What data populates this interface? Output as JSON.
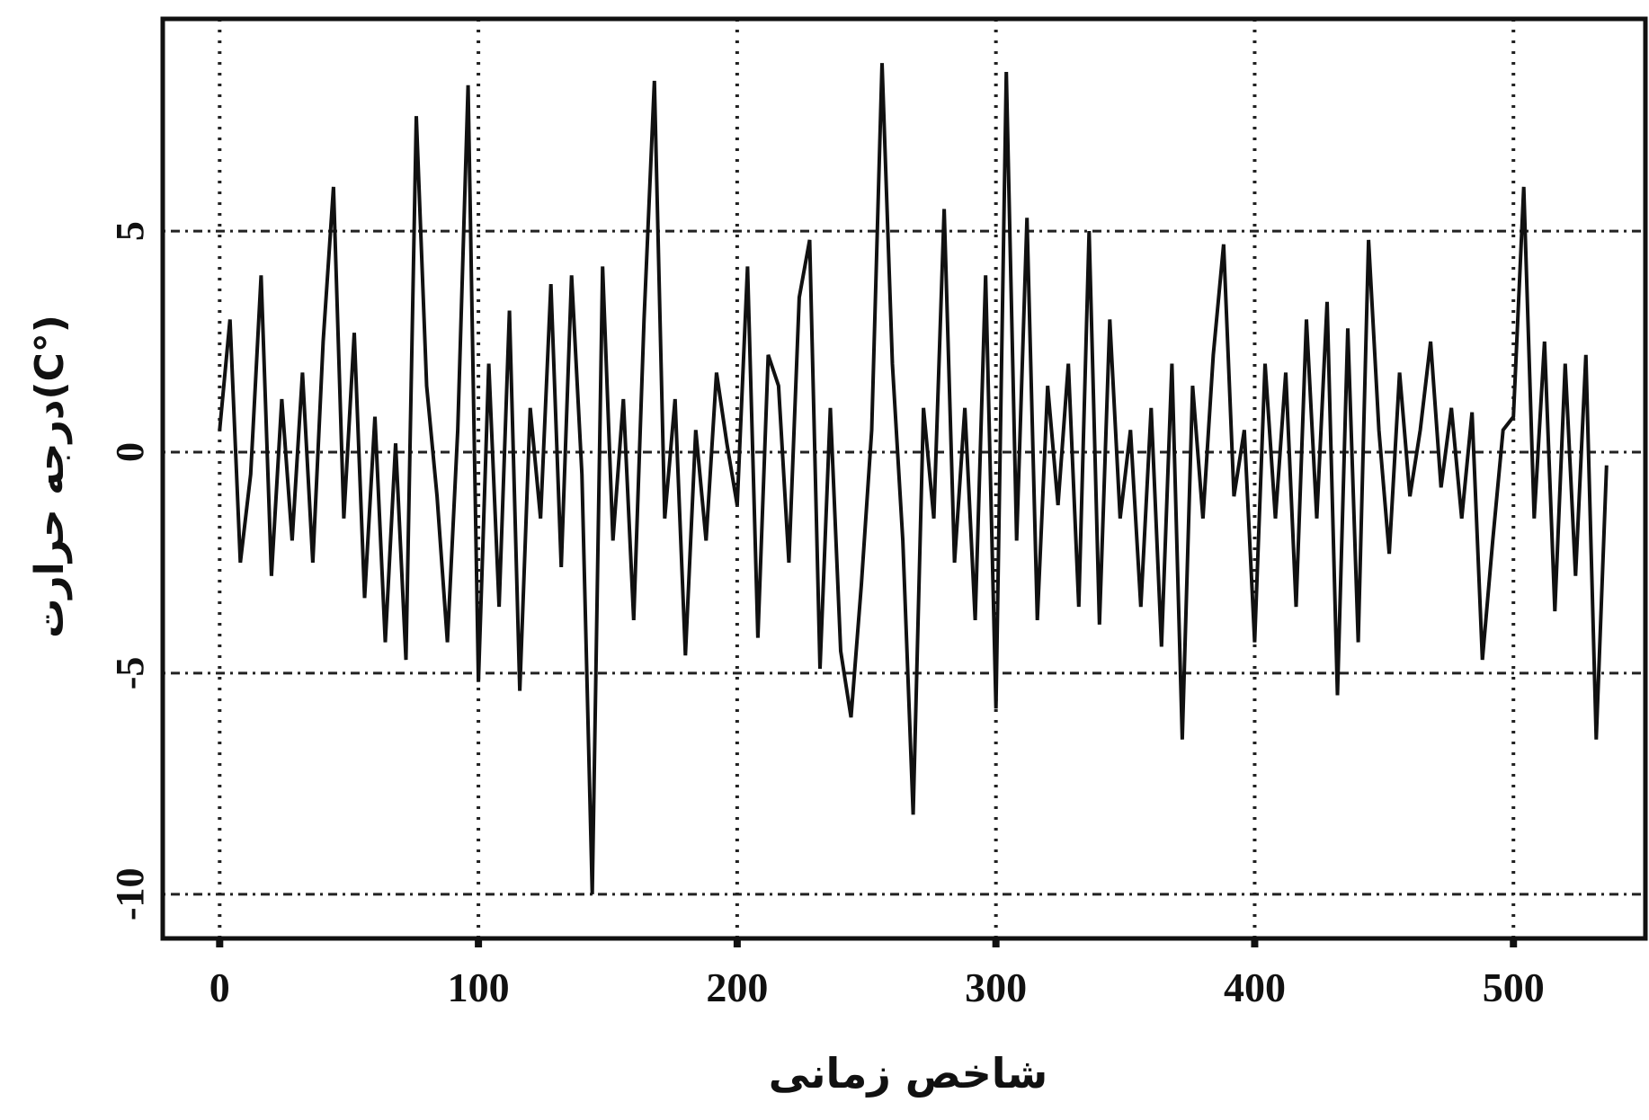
{
  "chart_data": {
    "type": "line",
    "x_label": "شاخص زمانی",
    "y_label": "درجه حرارت(C°)",
    "color": "#111111",
    "grid": true,
    "xlim": [
      -22,
      551
    ],
    "ylim": [
      -11,
      9.8
    ],
    "xticks": [
      0,
      100,
      200,
      300,
      400,
      500
    ],
    "yticks": [
      -10,
      -5,
      0,
      5
    ],
    "x": [
      0,
      4,
      8,
      12,
      16,
      20,
      24,
      28,
      32,
      36,
      40,
      44,
      48,
      52,
      56,
      60,
      64,
      68,
      72,
      76,
      80,
      84,
      88,
      92,
      96,
      100,
      104,
      108,
      112,
      116,
      120,
      124,
      128,
      132,
      136,
      140,
      144,
      148,
      152,
      156,
      160,
      164,
      168,
      172,
      176,
      180,
      184,
      188,
      192,
      196,
      200,
      204,
      208,
      212,
      216,
      220,
      224,
      228,
      232,
      236,
      240,
      244,
      248,
      252,
      256,
      260,
      264,
      268,
      272,
      276,
      280,
      284,
      288,
      292,
      296,
      300,
      304,
      308,
      312,
      316,
      320,
      324,
      328,
      332,
      336,
      340,
      344,
      348,
      352,
      356,
      360,
      364,
      368,
      372,
      376,
      380,
      384,
      388,
      392,
      396,
      400,
      404,
      408,
      412,
      416,
      420,
      424,
      428,
      432,
      436,
      440,
      444,
      448,
      452,
      456,
      460,
      464,
      468,
      472,
      476,
      480,
      484,
      488,
      492,
      496,
      500,
      504,
      508,
      512,
      516,
      520,
      524,
      528,
      532,
      536
    ],
    "values": [
      0.5,
      3.0,
      -2.5,
      -0.5,
      4.0,
      -2.8,
      1.2,
      -2.0,
      1.8,
      -2.5,
      2.5,
      6.0,
      -1.5,
      2.7,
      -3.3,
      0.8,
      -4.3,
      0.2,
      -4.7,
      7.6,
      1.5,
      -1.0,
      -4.3,
      0.5,
      8.3,
      -5.2,
      2.0,
      -3.5,
      3.2,
      -5.4,
      1.0,
      -1.5,
      3.8,
      -2.6,
      4.0,
      -0.5,
      -10.0,
      4.2,
      -2.0,
      1.2,
      -3.8,
      3.0,
      8.4,
      -1.5,
      1.2,
      -4.6,
      0.5,
      -2.0,
      1.8,
      0.2,
      -1.2,
      4.2,
      -4.2,
      2.2,
      1.5,
      -2.5,
      3.5,
      4.8,
      -4.9,
      1.0,
      -4.5,
      -6.0,
      -3.0,
      0.5,
      8.8,
      2.0,
      -2.0,
      -8.2,
      1.0,
      -1.5,
      5.5,
      -2.5,
      1.0,
      -3.8,
      4.0,
      -5.8,
      8.6,
      -2.0,
      5.3,
      -3.8,
      1.5,
      -1.2,
      2.0,
      -3.5,
      5.0,
      -3.9,
      3.0,
      -1.5,
      0.5,
      -3.5,
      1.0,
      -4.4,
      2.0,
      -6.5,
      1.5,
      -1.5,
      2.2,
      4.7,
      -1.0,
      0.5,
      -4.3,
      2.0,
      -1.5,
      1.8,
      -3.5,
      3.0,
      -1.5,
      3.4,
      -5.5,
      2.8,
      -4.3,
      4.8,
      0.5,
      -2.3,
      1.8,
      -1.0,
      0.5,
      2.5,
      -0.8,
      1.0,
      -1.5,
      0.9,
      -4.7,
      -2.0,
      0.5,
      0.8,
      6.0,
      -1.5,
      2.5,
      -3.6,
      2.0,
      -2.8,
      2.2,
      -6.5,
      -0.3
    ]
  }
}
